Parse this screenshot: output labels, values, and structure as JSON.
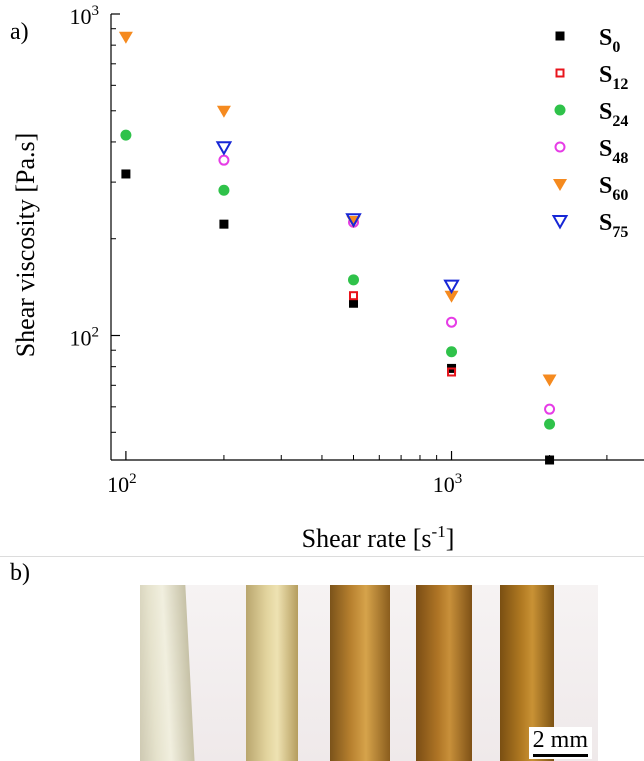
{
  "panel_labels": {
    "a": "a)",
    "b": "b)"
  },
  "scale_bar": {
    "label": "2 mm"
  },
  "chart_data": {
    "type": "scatter",
    "title": "",
    "xlabel": "Shear rate [s",
    "xlabel_sup": "-1",
    "xlabel_end": "]",
    "ylabel": "Shear viscosity [Pa.s]",
    "xscale": "log",
    "yscale": "log",
    "xlim": [
      90,
      3900
    ],
    "ylim": [
      41,
      1000
    ],
    "xticks": [
      {
        "value": 100,
        "base": "10",
        "exp": "2"
      },
      {
        "value": 1000,
        "base": "10",
        "exp": "3"
      }
    ],
    "yticks": [
      {
        "value": 100,
        "base": "10",
        "exp": "2"
      },
      {
        "value": 1000,
        "base": "10",
        "exp": "3"
      }
    ],
    "grid": false,
    "legend_position": "top-right",
    "series": [
      {
        "name": "S",
        "sub": "0",
        "marker": "square-filled",
        "color": "#000000",
        "x": [
          100,
          200,
          500,
          1000,
          2000
        ],
        "y": [
          318,
          222,
          126,
          79,
          41
        ]
      },
      {
        "name": "S",
        "sub": "12",
        "marker": "square-open",
        "color": "#e8141c",
        "x": [
          500,
          1000
        ],
        "y": [
          133,
          77
        ]
      },
      {
        "name": "S",
        "sub": "24",
        "marker": "circle-filled",
        "color": "#2fc24a",
        "x": [
          100,
          200,
          500,
          1000,
          2000
        ],
        "y": [
          420,
          283,
          149,
          89,
          53
        ]
      },
      {
        "name": "S",
        "sub": "48",
        "marker": "circle-open",
        "color": "#e63ce6",
        "x": [
          200,
          500,
          1000,
          2000
        ],
        "y": [
          351,
          225,
          110,
          59
        ]
      },
      {
        "name": "S",
        "sub": "60",
        "marker": "triangle-down-filled",
        "color": "#f58a1f",
        "x": [
          100,
          200,
          500,
          1000,
          2000
        ],
        "y": [
          850,
          500,
          227,
          133,
          73
        ]
      },
      {
        "name": "S",
        "sub": "75",
        "marker": "triangle-down-open",
        "color": "#1727d6",
        "x": [
          200,
          500,
          1000
        ],
        "y": [
          385,
          230,
          143
        ]
      }
    ]
  }
}
